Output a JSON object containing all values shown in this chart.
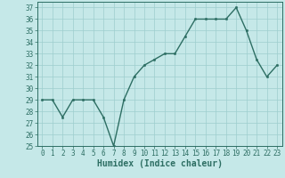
{
  "x": [
    0,
    1,
    2,
    3,
    4,
    5,
    6,
    7,
    8,
    9,
    10,
    11,
    12,
    13,
    14,
    15,
    16,
    17,
    18,
    19,
    20,
    21,
    22,
    23
  ],
  "y": [
    29,
    29,
    27.5,
    29,
    29,
    29,
    27.5,
    25,
    29,
    31,
    32,
    32.5,
    33,
    33,
    34.5,
    36,
    36,
    36,
    36,
    37,
    35,
    32.5,
    31,
    32
  ],
  "line_color": "#2d6e63",
  "marker": "o",
  "marker_size": 1.8,
  "bg_color": "#c5e8e8",
  "grid_color": "#9dcece",
  "xlabel": "Humidex (Indice chaleur)",
  "ylim": [
    25,
    37.5
  ],
  "yticks": [
    25,
    26,
    27,
    28,
    29,
    30,
    31,
    32,
    33,
    34,
    35,
    36,
    37
  ],
  "xticks": [
    0,
    1,
    2,
    3,
    4,
    5,
    6,
    7,
    8,
    9,
    10,
    11,
    12,
    13,
    14,
    15,
    16,
    17,
    18,
    19,
    20,
    21,
    22,
    23
  ],
  "tick_label_fontsize": 5.5,
  "xlabel_fontsize": 7.0,
  "line_width": 1.0,
  "axis_color": "#2d6e63"
}
